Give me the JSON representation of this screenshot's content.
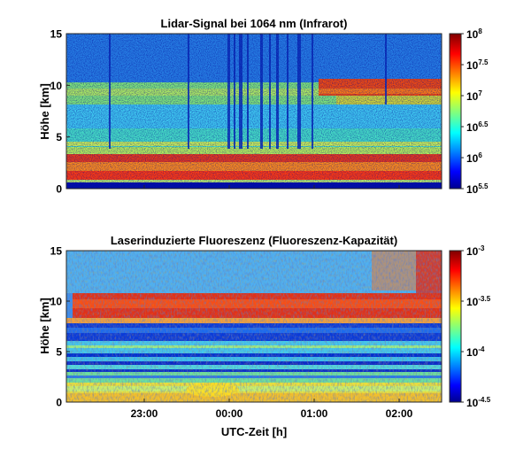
{
  "chart_data": [
    {
      "type": "heatmap",
      "title": "Lidar-Signal bei 1064 nm (Infrarot)",
      "ylabel": "Höhe [km]",
      "ylim": [
        0,
        15
      ],
      "yticks": [
        "0",
        "5",
        "10",
        "15"
      ],
      "colorbar": {
        "scale": "log",
        "range": [
          5.5,
          8
        ],
        "ticks": [
          {
            "base": "10",
            "exp": "8"
          },
          {
            "base": "10",
            "exp": "7.5"
          },
          {
            "base": "10",
            "exp": "7"
          },
          {
            "base": "10",
            "exp": "6.5"
          },
          {
            "base": "10",
            "exp": "6"
          },
          {
            "base": "10",
            "exp": "5.5"
          }
        ]
      },
      "layers": [
        {
          "from_km": 0,
          "to_km": 0.4,
          "level": "very low"
        },
        {
          "from_km": 0.5,
          "to_km": 3,
          "level": "very high"
        },
        {
          "from_km": 3,
          "to_km": 5,
          "level": "medium"
        },
        {
          "from_km": 5,
          "to_km": 8.5,
          "level": "medium-high"
        },
        {
          "from_km": 9.5,
          "to_km": 10.7,
          "level": "high (cloud, after 01:10)"
        },
        {
          "from_km": 11,
          "to_km": 15,
          "level": "low, noisy"
        }
      ]
    },
    {
      "type": "heatmap",
      "title": "Laserinduzierte Fluoreszenz (Fluoreszenz-Kapazität)",
      "xlabel": "UTC-Zeit [h]",
      "ylabel": "Höhe [km]",
      "ylim": [
        0,
        15
      ],
      "yticks": [
        "0",
        "5",
        "10",
        "15"
      ],
      "xticks": [
        "23:00",
        "00:00",
        "01:00",
        "02:00"
      ],
      "colorbar": {
        "scale": "log",
        "range": [
          -4.5,
          -3
        ],
        "ticks": [
          {
            "base": "10",
            "exp": "-3"
          },
          {
            "base": "10",
            "exp": "-3.5"
          },
          {
            "base": "10",
            "exp": "-4"
          },
          {
            "base": "10",
            "exp": "-4.5"
          }
        ]
      },
      "layers": [
        {
          "from_km": 0,
          "to_km": 2.5,
          "level": "medium"
        },
        {
          "from_km": 2.5,
          "to_km": 5,
          "level": "low-medium, striped"
        },
        {
          "from_km": 6,
          "to_km": 8,
          "level": "low"
        },
        {
          "from_km": 8.2,
          "to_km": 10.5,
          "level": "high"
        },
        {
          "from_km": 10.5,
          "to_km": 15,
          "level": "medium, noisy"
        }
      ]
    }
  ]
}
